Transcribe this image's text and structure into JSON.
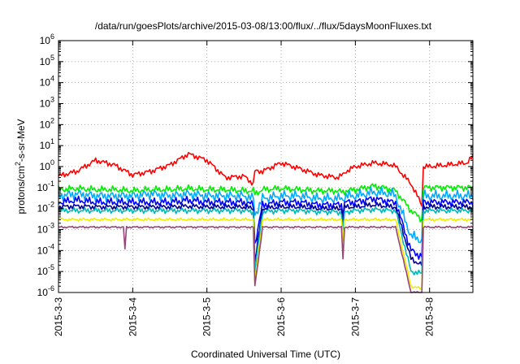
{
  "chart_data": {
    "type": "line",
    "title": "/data/run/goesPlots/archive/2015-03-08/13:00/flux/../flux/5daysMoonFluxes.txt",
    "xlabel": "Coordinated Universal Time (UTC)",
    "ylabel_base": "protons/cm",
    "ylabel_sup": "2",
    "ylabel_rest": "-s-sr-MeV",
    "yscale": "log",
    "grid": true,
    "xlim": [
      "2015-03-03",
      "2015-03-08T14:00"
    ],
    "ylim": [
      1e-06,
      1000000.0
    ],
    "x_tick_labels": [
      "2015-3-3",
      "2015-3-4",
      "2015-3-5",
      "2015-3-6",
      "2015-3-7",
      "2015-3-8"
    ],
    "x_tick_dates": [
      "2015-03-03",
      "2015-03-04",
      "2015-03-05",
      "2015-03-06",
      "2015-03-07",
      "2015-03-08"
    ],
    "y_tick_exponents": [
      -6,
      -5,
      -4,
      -3,
      -2,
      -1,
      0,
      1,
      2,
      3,
      4,
      5,
      6
    ],
    "x_profile_dates": [
      "2015-03-03T00:00",
      "2015-03-03T06:00",
      "2015-03-03T12:00",
      "2015-03-03T18:00",
      "2015-03-04T00:00",
      "2015-03-04T06:00",
      "2015-03-04T12:00",
      "2015-03-04T18:00",
      "2015-03-05T00:00",
      "2015-03-05T06:00",
      "2015-03-05T12:00",
      "2015-03-05T15:00",
      "2015-03-05T15:30",
      "2015-03-05T18:00",
      "2015-03-06T00:00",
      "2015-03-06T06:00",
      "2015-03-06T12:00",
      "2015-03-06T18:00",
      "2015-03-06T20:00",
      "2015-03-06T21:00",
      "2015-03-07T00:00",
      "2015-03-07T06:00",
      "2015-03-07T12:00",
      "2015-03-07T13:00",
      "2015-03-07T18:00",
      "2015-03-07T21:30",
      "2015-03-07T22:00",
      "2015-03-08T00:00",
      "2015-03-08T06:00",
      "2015-03-08T12:00",
      "2015-03-08T14:00"
    ],
    "series": [
      {
        "color": "#ff0000",
        "noise": 0.15,
        "values": [
          0.35,
          0.6,
          2.0,
          1.2,
          0.4,
          0.6,
          1.2,
          4.0,
          2.0,
          0.3,
          0.35,
          0.15,
          0.6,
          0.6,
          1.5,
          0.8,
          0.4,
          0.3,
          0.4,
          0.6,
          1.0,
          1.5,
          1.2,
          1.0,
          0.15,
          0.015,
          1.0,
          1.0,
          1.2,
          1.5,
          3.0
        ]
      },
      {
        "color": "#00ee00",
        "noise": 0.18,
        "values": [
          0.08,
          0.09,
          0.08,
          0.08,
          0.07,
          0.08,
          0.08,
          0.09,
          0.08,
          0.08,
          0.07,
          0.07,
          0.05,
          0.08,
          0.09,
          0.08,
          0.07,
          0.07,
          0.06,
          0.07,
          0.08,
          0.12,
          0.08,
          0.07,
          0.008,
          0.003,
          0.1,
          0.1,
          0.1,
          0.1,
          0.1
        ]
      },
      {
        "color": "#00aaff",
        "noise": 0.28,
        "values": [
          0.04,
          0.05,
          0.04,
          0.04,
          0.04,
          0.05,
          0.04,
          0.05,
          0.04,
          0.04,
          0.04,
          0.03,
          0.005,
          0.03,
          0.04,
          0.04,
          0.03,
          0.03,
          0.03,
          0.04,
          0.04,
          0.06,
          0.05,
          0.04,
          0.0005,
          0.0003,
          0.04,
          0.04,
          0.04,
          0.04,
          0.04
        ]
      },
      {
        "color": "#0000ff",
        "noise": 0.22,
        "values": [
          0.02,
          0.025,
          0.02,
          0.02,
          0.02,
          0.02,
          0.02,
          0.025,
          0.02,
          0.02,
          0.02,
          0.015,
          0.0002,
          0.015,
          0.02,
          0.02,
          0.015,
          0.015,
          0.015,
          0.02,
          0.02,
          0.03,
          0.02,
          0.02,
          0.0001,
          5e-05,
          0.02,
          0.02,
          0.02,
          0.02,
          0.02
        ]
      },
      {
        "color": "#000099",
        "noise": 0.15,
        "values": [
          0.012,
          0.013,
          0.012,
          0.012,
          0.012,
          0.012,
          0.012,
          0.013,
          0.012,
          0.012,
          0.012,
          0.01,
          3e-05,
          0.01,
          0.012,
          0.012,
          0.01,
          0.01,
          0.01,
          0.012,
          0.012,
          0.015,
          0.012,
          0.012,
          4e-05,
          2e-05,
          0.012,
          0.012,
          0.012,
          0.012,
          0.012
        ]
      },
      {
        "color": "#00b8b8",
        "noise": 0.15,
        "values": [
          0.008,
          0.008,
          0.008,
          0.008,
          0.008,
          0.008,
          0.008,
          0.008,
          0.008,
          0.008,
          0.008,
          0.007,
          1e-05,
          0.007,
          0.008,
          0.008,
          0.007,
          0.007,
          0.006,
          0.007,
          0.008,
          0.009,
          0.008,
          0.008,
          1e-05,
          8e-06,
          0.008,
          0.008,
          0.008,
          0.008,
          0.008
        ]
      },
      {
        "color": "#eeee00",
        "noise": 0.08,
        "values": [
          0.003,
          0.003,
          0.003,
          0.003,
          0.003,
          0.003,
          0.003,
          0.003,
          0.003,
          0.003,
          0.003,
          0.003,
          3e-06,
          0.003,
          0.003,
          0.003,
          0.003,
          0.003,
          0.003,
          0.003,
          0.003,
          0.003,
          0.003,
          0.003,
          2e-06,
          1.5e-06,
          0.003,
          0.003,
          0.003,
          0.003,
          0.003
        ]
      },
      {
        "color": "#994477",
        "noise": 0.05,
        "values": [
          0.0013,
          0.0013,
          0.0013,
          0.0013,
          0.0013,
          0.0013,
          0.0013,
          0.0013,
          0.0013,
          0.0013,
          0.0013,
          0.0013,
          2e-06,
          0.0013,
          0.0013,
          0.0013,
          0.0013,
          0.0013,
          0.0013,
          0.0013,
          0.0013,
          0.0013,
          0.0013,
          0.0013,
          1e-06,
          1e-06,
          0.0013,
          0.0013,
          0.0013,
          0.0013,
          0.0013
        ]
      }
    ],
    "dips": [
      {
        "series": 7,
        "date": "2015-03-03T21:30",
        "value": 0.00012
      },
      {
        "series": 7,
        "date": "2015-03-06T19:50",
        "value": 4e-05
      },
      {
        "series": 6,
        "date": "2015-03-06T19:50",
        "value": 0.0003
      },
      {
        "series": 5,
        "date": "2015-03-06T19:50",
        "value": 0.001
      },
      {
        "series": 4,
        "date": "2015-03-06T19:50",
        "value": 0.002
      },
      {
        "series": 3,
        "date": "2015-03-06T19:50",
        "value": 0.004
      }
    ]
  }
}
